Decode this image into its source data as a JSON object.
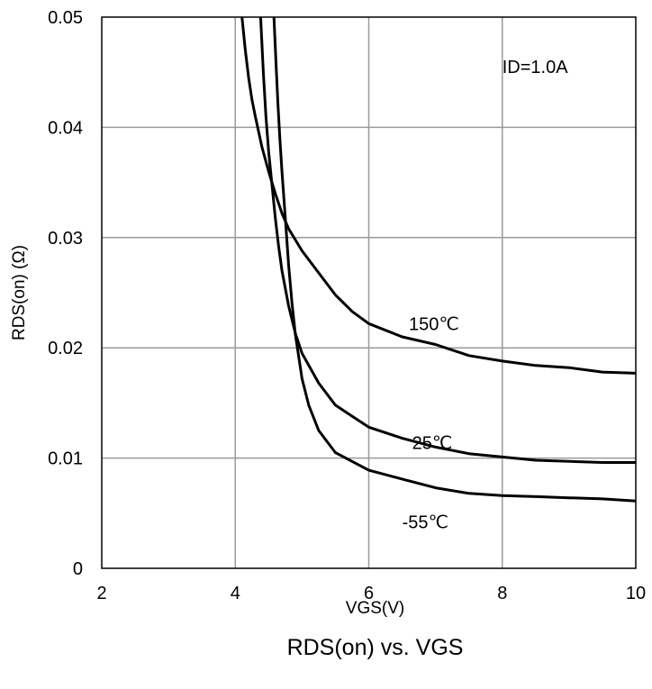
{
  "chart_data": {
    "type": "line",
    "title": "RDS(on) vs. VGS",
    "xlabel": "VGS(V)",
    "ylabel": "RDS(on) (Ω)",
    "xlim": [
      2,
      10
    ],
    "ylim": [
      0,
      0.05
    ],
    "x_ticks": [
      2,
      4,
      6,
      8,
      10
    ],
    "y_ticks": [
      0,
      0.01,
      0.02,
      0.03,
      0.04,
      0.05
    ],
    "x_tick_labels": [
      "2",
      "4",
      "6",
      "8",
      "10"
    ],
    "y_tick_labels": [
      "0",
      "0.01",
      "0.02",
      "0.03",
      "0.04",
      "0.05"
    ],
    "grid": true,
    "annotations": [
      {
        "text": "ID=1.0A",
        "x": 8.0,
        "y": 0.0455
      },
      {
        "text": "150℃",
        "x": 6.6,
        "y": 0.0222
      },
      {
        "text": "25℃",
        "x": 6.65,
        "y": 0.0114
      },
      {
        "text": "-55℃",
        "x": 6.5,
        "y": 0.0042
      }
    ],
    "series": [
      {
        "name": "150℃",
        "x": [
          4.1,
          4.15,
          4.2,
          4.25,
          4.3,
          4.4,
          4.5,
          4.6,
          4.7,
          4.8,
          5.0,
          5.25,
          5.5,
          5.75,
          6.0,
          6.5,
          7.0,
          7.5,
          8.0,
          8.5,
          9.0,
          9.5,
          10.0
        ],
        "values": [
          0.05,
          0.047,
          0.0445,
          0.0425,
          0.041,
          0.0382,
          0.036,
          0.034,
          0.0322,
          0.0308,
          0.0288,
          0.0268,
          0.0248,
          0.0233,
          0.0222,
          0.021,
          0.0203,
          0.0193,
          0.0188,
          0.0184,
          0.0182,
          0.0178,
          0.0177
        ]
      },
      {
        "name": "25℃",
        "x": [
          4.38,
          4.42,
          4.46,
          4.5,
          4.55,
          4.6,
          4.65,
          4.7,
          4.8,
          4.9,
          5.0,
          5.25,
          5.5,
          5.75,
          6.0,
          6.5,
          7.0,
          7.5,
          8.0,
          8.5,
          9.0,
          9.5,
          10.0
        ],
        "values": [
          0.05,
          0.045,
          0.041,
          0.0378,
          0.0348,
          0.0318,
          0.0292,
          0.027,
          0.0238,
          0.0213,
          0.0195,
          0.0168,
          0.0148,
          0.0138,
          0.0128,
          0.0118,
          0.011,
          0.0104,
          0.0101,
          0.0098,
          0.0097,
          0.0096,
          0.0096
        ]
      },
      {
        "name": "-55℃",
        "x": [
          4.58,
          4.61,
          4.64,
          4.67,
          4.7,
          4.75,
          4.8,
          4.85,
          4.9,
          5.0,
          5.1,
          5.25,
          5.5,
          5.75,
          6.0,
          6.5,
          7.0,
          7.5,
          8.0,
          8.5,
          9.0,
          9.5,
          10.0
        ],
        "values": [
          0.05,
          0.0458,
          0.042,
          0.0388,
          0.036,
          0.0318,
          0.0275,
          0.024,
          0.0212,
          0.0172,
          0.0148,
          0.0125,
          0.0105,
          0.0097,
          0.0089,
          0.0081,
          0.0073,
          0.0068,
          0.0066,
          0.0065,
          0.0064,
          0.0063,
          0.0061
        ]
      }
    ],
    "legend": "none"
  }
}
